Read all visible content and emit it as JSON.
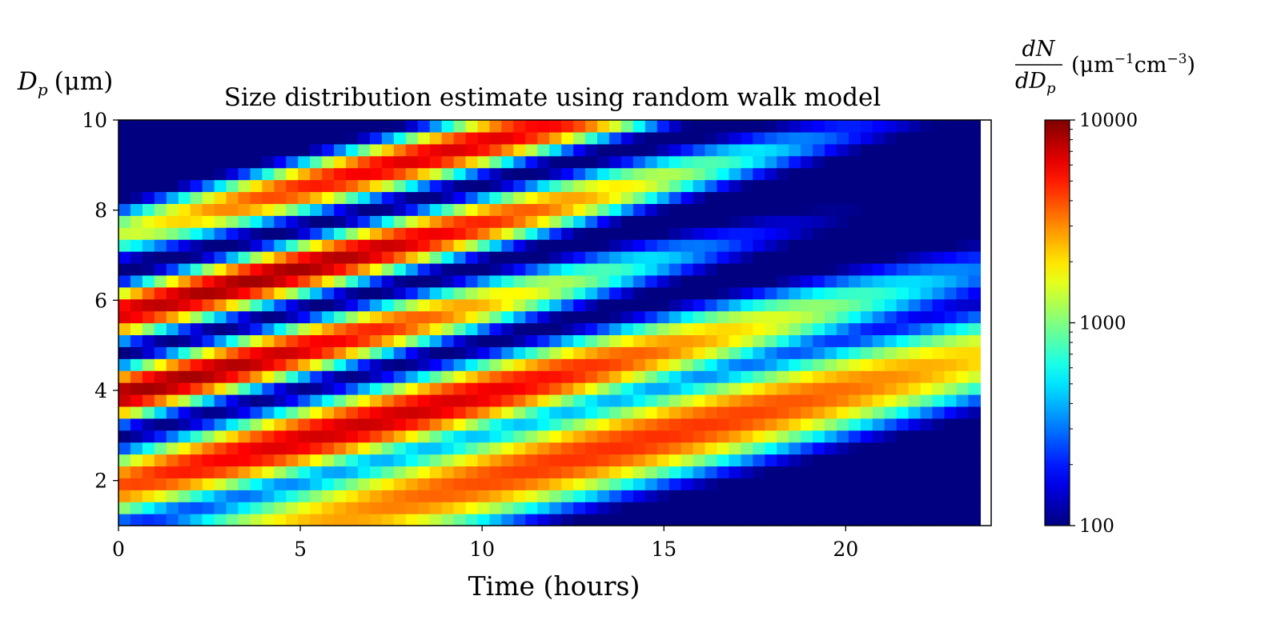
{
  "chart_data": {
    "type": "heatmap",
    "title": "Size distribution estimate using random walk model",
    "xlabel": "Time (hours)",
    "ylabel": {
      "main": "D",
      "sub": "p",
      "unit": "(μm)"
    },
    "colorbar_label": {
      "num": "dN",
      "den_main": "dD",
      "den_sub": "p",
      "unit_open": "(μm",
      "exp1": "−1",
      "mid": "cm",
      "exp2": "−3",
      "unit_close": ")"
    },
    "xlim": [
      0,
      24
    ],
    "ylim": [
      1,
      10
    ],
    "x_ticks": [
      0,
      5,
      10,
      15,
      20
    ],
    "x_tick_labels": [
      "0",
      "5",
      "10",
      "15",
      "20"
    ],
    "y_ticks": [
      2,
      4,
      6,
      8,
      10
    ],
    "y_tick_labels": [
      "2",
      "4",
      "6",
      "8",
      "10"
    ],
    "x_data_extent": [
      0,
      23.7
    ],
    "y_data_extent": [
      1,
      10
    ],
    "color_scale": "log",
    "colormap": "jet",
    "color_range": [
      100,
      10000
    ],
    "colorbar_ticks": [
      100,
      1000,
      10000
    ],
    "colorbar_tick_labels": [
      "100",
      "1000",
      "10000"
    ],
    "ridges": [
      {
        "t0": -1.5,
        "d0": 7.2,
        "slope": 0.2,
        "width": 0.35,
        "peak_t": 9,
        "peak": 6500,
        "spread": 7
      },
      {
        "t0": -1.5,
        "d0": 5.4,
        "slope": 0.2,
        "width": 0.35,
        "peak_t": 4,
        "peak": 8500,
        "spread": 8
      },
      {
        "t0": -1.5,
        "d0": 3.6,
        "slope": 0.2,
        "width": 0.35,
        "peak_t": 1,
        "peak": 8500,
        "spread": 8
      },
      {
        "t0": -1.5,
        "d0": 1.6,
        "slope": 0.2,
        "width": 0.45,
        "peak_t": 7,
        "peak": 7000,
        "spread": 9
      },
      {
        "t0": -1.5,
        "d0": -0.3,
        "slope": 0.2,
        "width": 0.6,
        "peak_t": 14,
        "peak": 4500,
        "spread": 11
      }
    ],
    "background": 80
  }
}
